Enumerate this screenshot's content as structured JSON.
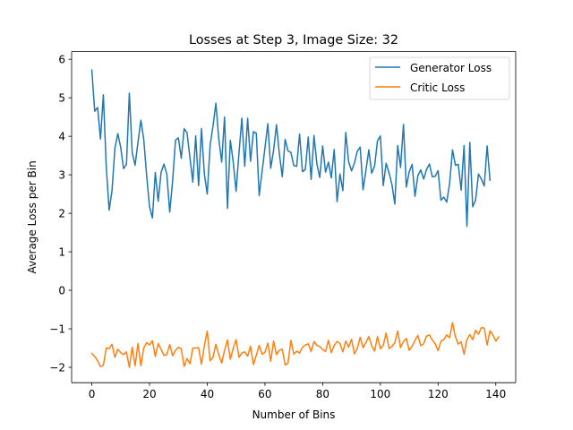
{
  "chart_data": {
    "type": "line",
    "title": "Losses at Step 3, Image Size: 32",
    "xlabel": "Number of Bins",
    "ylabel": "Average Loss per Bin",
    "xlim": [
      -7,
      146.9
    ],
    "ylim": [
      -2.4,
      6.2
    ],
    "xticks": [
      0,
      20,
      40,
      60,
      80,
      100,
      120,
      140
    ],
    "yticks": [
      -2,
      -1,
      0,
      1,
      2,
      3,
      4,
      5,
      6
    ],
    "grid": false,
    "legend_position": "top-right",
    "series": [
      {
        "name": "Generator Loss",
        "color": "#1f77b4",
        "values": [
          5.72,
          4.65,
          4.75,
          3.93,
          5.08,
          3.21,
          2.08,
          2.59,
          3.69,
          4.07,
          3.72,
          3.16,
          3.27,
          5.12,
          3.57,
          3.25,
          3.85,
          4.42,
          3.92,
          2.98,
          2.17,
          1.88,
          3.06,
          2.31,
          3.06,
          3.28,
          3.01,
          2.03,
          2.84,
          3.9,
          3.96,
          3.43,
          4.2,
          4.09,
          3.45,
          2.81,
          4.01,
          2.72,
          4.2,
          3.02,
          2.5,
          3.77,
          4.27,
          4.86,
          3.93,
          3.33,
          4.5,
          2.13,
          3.9,
          3.34,
          2.57,
          3.57,
          4.47,
          3.22,
          4.47,
          3.35,
          4.12,
          4.08,
          2.46,
          3.08,
          3.7,
          4.33,
          3.17,
          3.64,
          4.3,
          3.54,
          2.95,
          3.92,
          3.62,
          3.58,
          3.24,
          3.22,
          4.06,
          3.08,
          3.14,
          3.98,
          2.88,
          4.02,
          3.28,
          2.93,
          3.75,
          3.07,
          3.33,
          2.92,
          3.66,
          2.3,
          3.02,
          2.59,
          4.1,
          3.34,
          3.1,
          3.3,
          3.61,
          3.72,
          2.61,
          3.12,
          3.65,
          3.04,
          3.23,
          3.88,
          4.01,
          2.72,
          3.3,
          3.05,
          2.75,
          2.24,
          3.76,
          3.19,
          4.31,
          2.68,
          3.08,
          3.27,
          2.44,
          2.98,
          3.13,
          2.89,
          3.14,
          3.28,
          2.95,
          2.96,
          3.11,
          2.34,
          2.42,
          2.29,
          2.78,
          3.65,
          3.25,
          3.27,
          2.6,
          3.76,
          1.66,
          3.84,
          2.17,
          2.34,
          3.02,
          2.89,
          2.71,
          3.75,
          2.86
        ]
      },
      {
        "name": "Critic Loss",
        "color": "#ff7f0e",
        "values": [
          -1.64,
          -1.72,
          -1.83,
          -1.98,
          -1.95,
          -1.5,
          -1.51,
          -1.4,
          -1.74,
          -1.53,
          -1.62,
          -1.67,
          -1.6,
          -2.0,
          -1.48,
          -1.96,
          -1.38,
          -1.96,
          -1.5,
          -1.36,
          -1.42,
          -1.31,
          -1.72,
          -1.38,
          -1.53,
          -1.69,
          -1.67,
          -1.41,
          -1.7,
          -1.56,
          -1.48,
          -1.52,
          -1.98,
          -1.77,
          -1.91,
          -1.5,
          -1.5,
          -1.49,
          -1.92,
          -1.44,
          -1.06,
          -1.83,
          -1.74,
          -1.4,
          -1.68,
          -1.89,
          -1.56,
          -1.29,
          -1.79,
          -1.51,
          -1.28,
          -1.74,
          -1.63,
          -1.6,
          -1.71,
          -1.45,
          -1.93,
          -1.69,
          -1.43,
          -1.66,
          -1.61,
          -1.37,
          -1.84,
          -1.32,
          -1.67,
          -1.56,
          -1.53,
          -1.94,
          -1.89,
          -1.3,
          -1.66,
          -1.58,
          -1.63,
          -1.48,
          -1.42,
          -1.39,
          -1.59,
          -1.33,
          -1.43,
          -1.46,
          -1.54,
          -1.59,
          -1.3,
          -1.62,
          -1.43,
          -1.33,
          -1.38,
          -1.6,
          -1.32,
          -1.48,
          -1.27,
          -1.65,
          -1.51,
          -1.22,
          -1.49,
          -1.36,
          -1.2,
          -1.44,
          -1.58,
          -1.2,
          -1.52,
          -1.43,
          -1.11,
          -1.51,
          -1.46,
          -1.36,
          -1.06,
          -1.49,
          -1.33,
          -1.25,
          -1.56,
          -1.45,
          -1.3,
          -1.17,
          -1.44,
          -1.39,
          -1.19,
          -1.16,
          -1.29,
          -1.39,
          -1.57,
          -1.32,
          -1.28,
          -1.16,
          -1.23,
          -0.84,
          -1.2,
          -1.4,
          -1.34,
          -1.66,
          -1.28,
          -1.15,
          -1.28,
          -1.04,
          -1.14,
          -0.97,
          -0.98,
          -1.42,
          -1.05,
          -1.16,
          -1.32,
          -1.21
        ]
      }
    ]
  }
}
